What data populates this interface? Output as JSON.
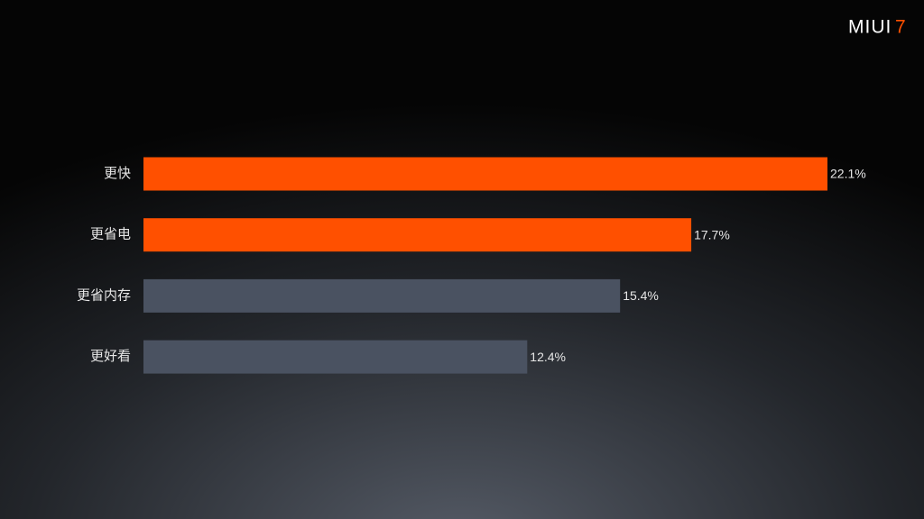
{
  "logo": {
    "text": "MIUI",
    "version": "7"
  },
  "chart_data": {
    "type": "bar",
    "categories": [
      "更快",
      "更省电",
      "更省内存",
      "更好看"
    ],
    "values": [
      22.1,
      17.7,
      15.4,
      12.4
    ],
    "value_labels": [
      "22.1%",
      "17.7%",
      "15.4%",
      "12.4%"
    ],
    "colors": [
      "#ff5000",
      "#ff5000",
      "#4a5261",
      "#4a5261"
    ]
  }
}
